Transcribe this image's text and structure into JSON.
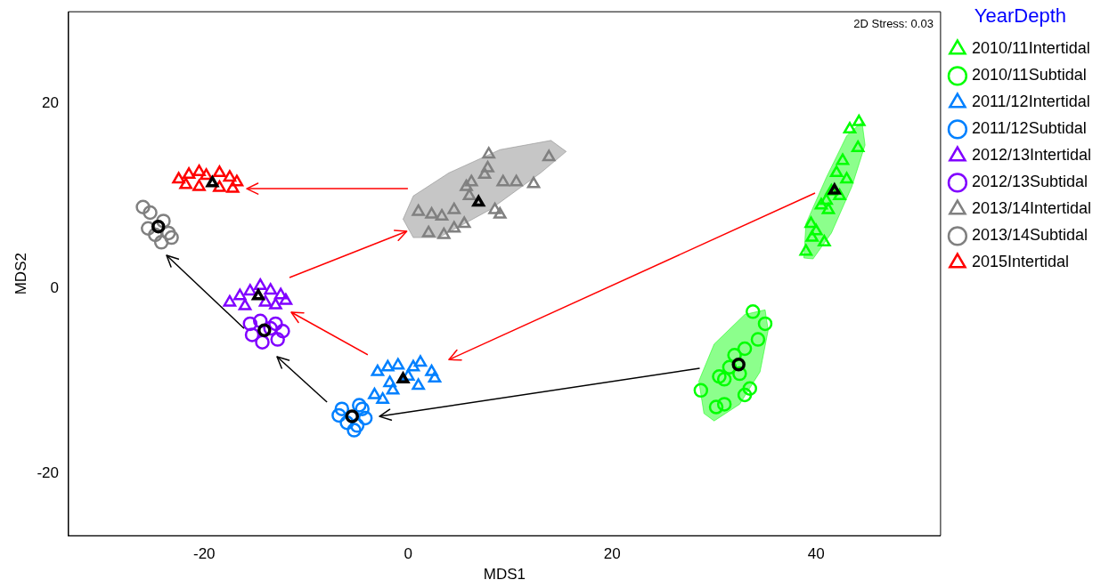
{
  "chart_data": {
    "type": "scatter",
    "xlabel": "MDS1",
    "ylabel": "MDS2",
    "legend_title": "YearDepth",
    "legend": "right",
    "grid": false,
    "xlim": [
      -33.3,
      52.2
    ],
    "xticks": [
      -20,
      0,
      20,
      40
    ],
    "ylim": [
      -26.7,
      29.9
    ],
    "yticks": [
      -20,
      0,
      20
    ],
    "annotations": [
      "2D Stress: 0.03"
    ],
    "series": [
      {
        "type": "area",
        "color": "#00ff00",
        "x": [
          38.8,
          39.0,
          41,
          43,
          44.5,
          44.8,
          43.5,
          41.5,
          39.7,
          38.8
        ],
        "values": [
          3.3,
          7,
          12,
          16.5,
          18,
          15.5,
          11,
          6,
          3.2,
          3.3
        ]
      },
      {
        "type": "area",
        "color": "#00ff00",
        "x": [
          29,
          28.5,
          30,
          33,
          35,
          35.3,
          34.5,
          32.5,
          30,
          29
        ],
        "values": [
          -13.5,
          -10,
          -6,
          -2.8,
          -2.3,
          -4.5,
          -9,
          -12.5,
          -14.3,
          -13.5
        ]
      },
      {
        "type": "area",
        "color": "#808080",
        "x": [
          -0.5,
          0.5,
          4,
          9,
          14,
          15.5,
          13,
          8,
          3,
          0.5,
          -0.5
        ],
        "values": [
          7.5,
          10,
          12.5,
          15,
          16,
          14.8,
          12.5,
          8.5,
          5.5,
          5.5,
          7.5
        ]
      },
      {
        "name": "2010/11Intertidal",
        "marker": "triangle",
        "color": "#00ff00",
        "x": [
          44.2,
          43.3,
          44.1,
          42.6,
          42.0,
          43.0,
          41.5,
          40.5,
          41.2,
          39.5,
          40.0,
          40.8,
          39.6,
          39.0,
          42.3,
          41.0
        ],
        "values": [
          18.0,
          17.2,
          15.2,
          13.8,
          12.5,
          11.8,
          10.5,
          9.0,
          8.5,
          7.0,
          6.2,
          5.0,
          5.5,
          4.0,
          10.0,
          9.5
        ]
      },
      {
        "name": "2010/11Subtidal",
        "marker": "circle",
        "color": "#00ff00",
        "x": [
          33.8,
          35.0,
          34.3,
          33.0,
          32.0,
          31.5,
          30.5,
          33.5,
          28.7,
          30.2,
          31.0,
          33.0,
          31.0,
          32.5
        ],
        "values": [
          -2.5,
          -3.8,
          -5.5,
          -6.5,
          -7.2,
          -8.5,
          -9.5,
          -10.8,
          -11.0,
          -12.8,
          -12.5,
          -11.5,
          -9.8,
          -9.2
        ]
      },
      {
        "name": "2011/12Intertidal",
        "marker": "triangle",
        "color": "#0080ff",
        "x": [
          -3.0,
          -2,
          -1,
          0.5,
          1.2,
          2.3,
          2.6,
          -3.3,
          -2.5,
          -1.5,
          1.0,
          0,
          -1.8
        ],
        "values": [
          -9.0,
          -8.5,
          -8.3,
          -8.5,
          -8.0,
          -9.0,
          -9.7,
          -11.5,
          -12.0,
          -11.0,
          -10.5,
          -9.5,
          -10.2
        ]
      },
      {
        "name": "2011/12Subtidal",
        "marker": "circle",
        "color": "#0080ff",
        "x": [
          -6.5,
          -4.5,
          -6,
          -5,
          -4.2,
          -6.8,
          -5.3,
          -4.8
        ],
        "values": [
          -13.0,
          -13.0,
          -14.5,
          -14.8,
          -14.0,
          -13.7,
          -15.3,
          -12.6
        ]
      },
      {
        "name": "2012/13Intertidal",
        "marker": "triangle",
        "color": "#8000ff",
        "x": [
          -17.5,
          -16.5,
          -15.5,
          -14.5,
          -13.5,
          -12.5,
          -12.0,
          -13,
          -16,
          -14
        ],
        "values": [
          -1.5,
          -0.8,
          -0.3,
          0.3,
          -0.2,
          -0.7,
          -1.3,
          -1.8,
          -1.9,
          -1.5
        ]
      },
      {
        "name": "2012/13Subtidal",
        "marker": "circle",
        "color": "#8000ff",
        "x": [
          -15.5,
          -14.5,
          -13,
          -12.3,
          -12.8,
          -14.3,
          -15.3,
          -13.5
        ],
        "values": [
          -3.8,
          -3.5,
          -3.8,
          -4.6,
          -5.5,
          -5.8,
          -5.0,
          -4.3
        ]
      },
      {
        "name": "2013/14Intertidal",
        "marker": "triangle",
        "color": "#808080",
        "x": [
          13.8,
          7.9,
          7.8,
          7.5,
          5.7,
          6.2,
          9.3,
          10.6,
          12.3,
          1.0,
          2.3,
          3.3,
          4.5,
          8.5,
          9.0,
          2.0,
          3.5,
          4.5,
          5.5,
          6.0
        ],
        "values": [
          14.2,
          14.5,
          13.0,
          12.3,
          11.0,
          11.5,
          11.5,
          11.5,
          11.3,
          8.3,
          8.0,
          7.8,
          8.5,
          8.5,
          8.0,
          6.0,
          5.8,
          6.5,
          7.0,
          10.0
        ]
      },
      {
        "name": "2013/14Subtidal",
        "marker": "circle",
        "color": "#808080",
        "x": [
          -26,
          -25.3,
          -24,
          -23.5,
          -24.8,
          -23.2,
          -24.2,
          -25.5
        ],
        "values": [
          8.8,
          8.2,
          7.3,
          6.0,
          5.8,
          5.5,
          5.0,
          6.5
        ]
      },
      {
        "name": "2015Intertidal",
        "marker": "triangle",
        "color": "#ff0000",
        "x": [
          -22.5,
          -21.5,
          -20.5,
          -19.8,
          -18.5,
          -17.5,
          -16.8,
          -17.2,
          -18.5,
          -20.5,
          -21.8
        ],
        "values": [
          11.8,
          12.3,
          12.6,
          12.2,
          12.5,
          12.0,
          11.5,
          10.8,
          10.9,
          11.0,
          11.2
        ]
      },
      {
        "marker": "triangle",
        "color": "#000000",
        "x": [
          41.8,
          -0.5,
          -14.7,
          6.9,
          -19.2
        ],
        "values": [
          10.6,
          -9.8,
          -0.8,
          9.3,
          11.4
        ]
      },
      {
        "marker": "circle",
        "color": "#000000",
        "x": [
          32.4,
          -5.5,
          -14.1,
          -24.5
        ],
        "values": [
          -8.2,
          -13.8,
          -4.5,
          6.7
        ]
      }
    ]
  }
}
